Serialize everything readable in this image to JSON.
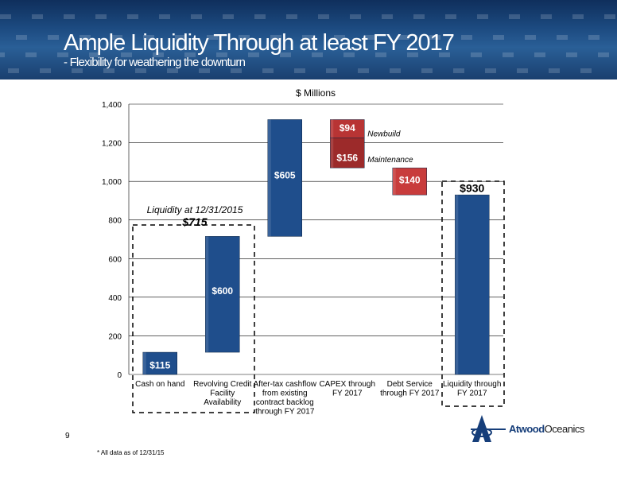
{
  "header": {
    "title": "Ample Liquidity Through at least FY 2017",
    "subtitle": "- Flexibility for weathering the downturn"
  },
  "footer": {
    "page_number": "9",
    "footnote": "* All data as of 12/31/15",
    "logo_text_bold": "Atwood",
    "logo_text_rest": "Oceanics"
  },
  "chart_data": {
    "type": "bar",
    "subtype": "waterfall",
    "title": "$ Millions",
    "ylim": [
      0,
      1400
    ],
    "yticks": [
      0,
      200,
      400,
      600,
      800,
      1000,
      1200,
      1400
    ],
    "ytick_labels": [
      "0",
      "200",
      "400",
      "600",
      "800",
      "1,000",
      "1,200",
      "1,400"
    ],
    "grid": true,
    "categories": [
      [
        "Cash on hand"
      ],
      [
        "Revolving Credit",
        "Facility",
        "Availability"
      ],
      [
        "After-tax cashflow",
        "from existing",
        "contract backlog",
        "through FY 2017"
      ],
      [
        "CAPEX through",
        "FY 2017"
      ],
      [
        "Debt Service",
        "through FY 2017"
      ],
      [
        "Liquidity through",
        "FY 2017"
      ]
    ],
    "segments": [
      {
        "category": 0,
        "start": 0,
        "end": 115,
        "label": "$115",
        "color": "#1f4e8c"
      },
      {
        "category": 1,
        "start": 115,
        "end": 715,
        "label": "$600",
        "color": "#1f4e8c"
      },
      {
        "category": 2,
        "start": 715,
        "end": 1320,
        "label": "$605",
        "color": "#1f4e8c"
      },
      {
        "category": 3,
        "start": 1070,
        "end": 1226,
        "label": "$156",
        "color": "#9c2a2a",
        "name": "Maintenance"
      },
      {
        "category": 3,
        "start": 1226,
        "end": 1320,
        "label": "$94",
        "color": "#b83434",
        "name": "Newbuild"
      },
      {
        "category": 4,
        "start": 930,
        "end": 1070,
        "label": "$140",
        "color": "#c83c3c"
      },
      {
        "category": 5,
        "start": 0,
        "end": 930,
        "label": "$930",
        "color": "#1f4e8c"
      }
    ],
    "annotations": {
      "liquidity_label": "Liquidity at 12/31/2015",
      "liquidity_value": "$715"
    }
  }
}
